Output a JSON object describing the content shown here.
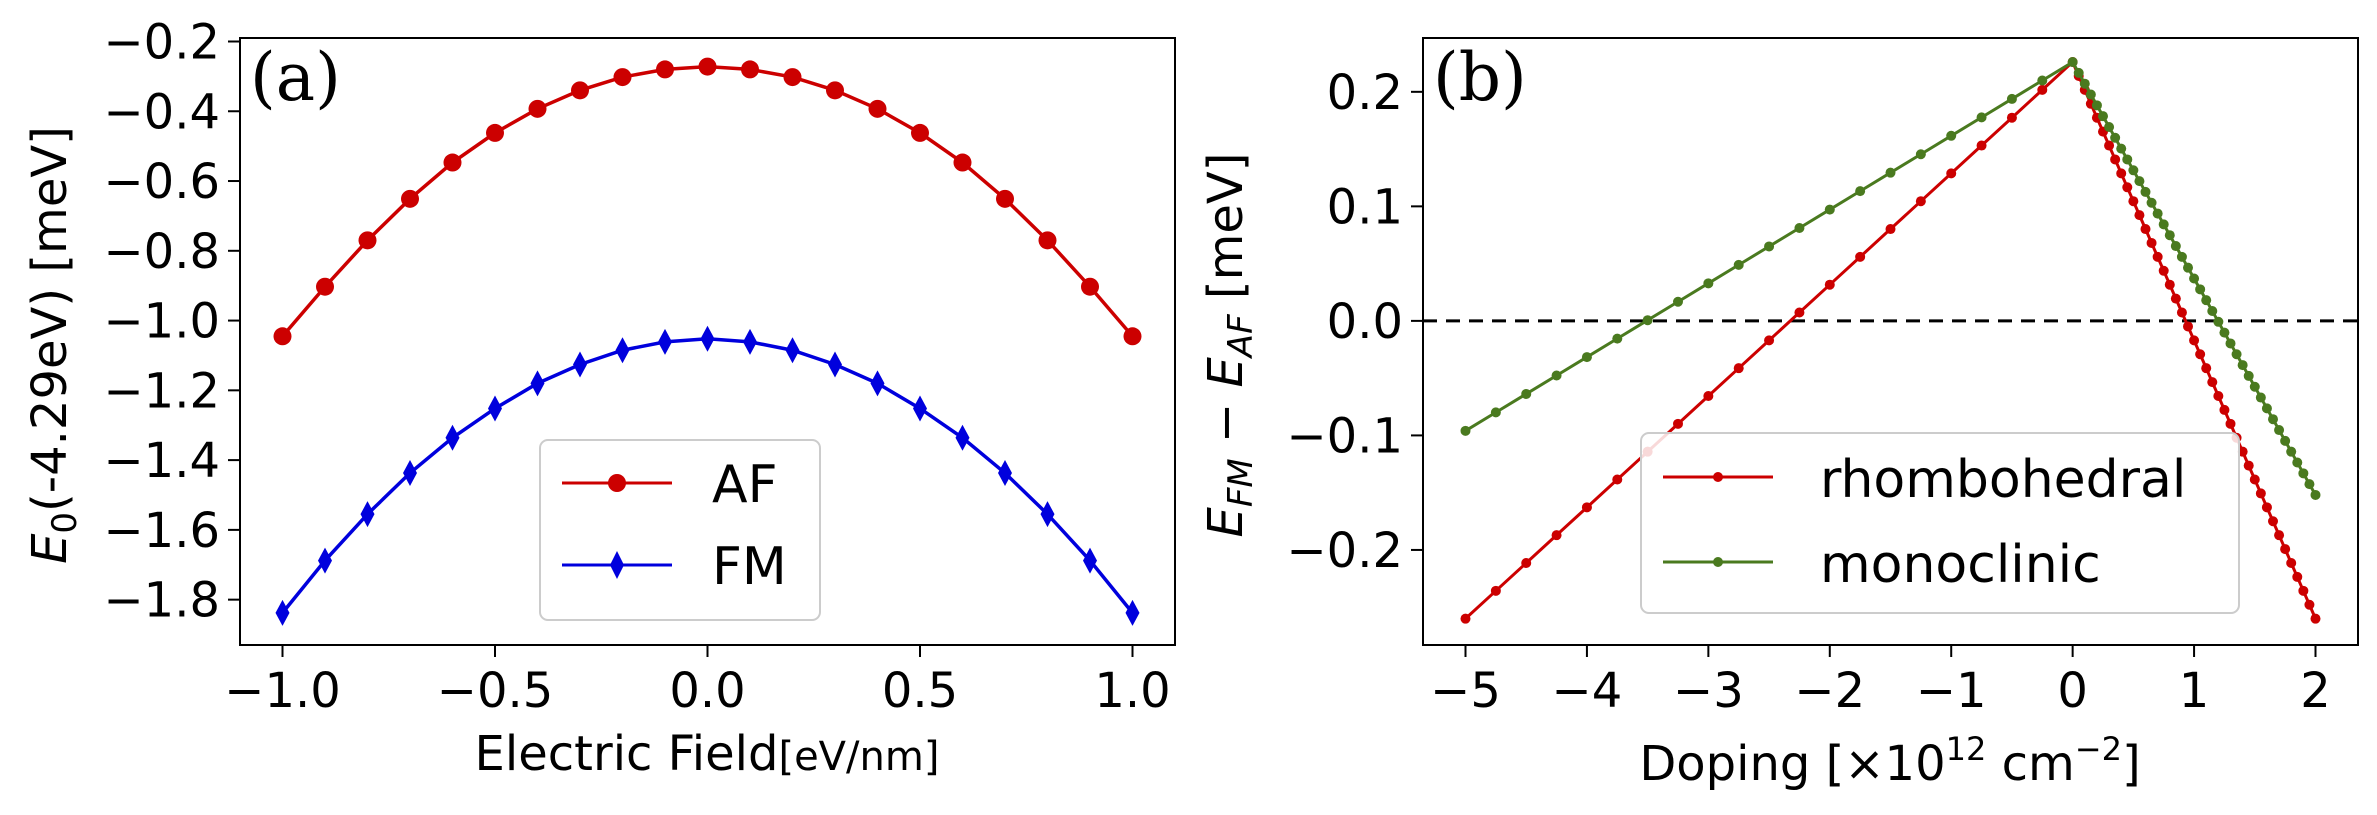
{
  "chart_data": [
    {
      "type": "line",
      "panel_label": "(a)",
      "xlabel_main": "Electric Field",
      "xlabel_unit": "[eV/nm]",
      "ylabel": {
        "base": "E",
        "sub": "0",
        "rest": "(-4.29eV) [meV]"
      },
      "xlim": [
        -1.1,
        1.1
      ],
      "ylim": [
        -1.93,
        -0.19
      ],
      "xticks": [
        -1.0,
        -0.5,
        0.0,
        0.5,
        1.0
      ],
      "xtick_labels": [
        "−1.0",
        "−0.5",
        "0.0",
        "0.5",
        "1.0"
      ],
      "yticks": [
        -0.2,
        -0.4,
        -0.6,
        -0.8,
        -1.0,
        -1.2,
        -1.4,
        -1.6,
        -1.8
      ],
      "ytick_labels": [
        "−0.2",
        "−0.4",
        "−0.6",
        "−0.8",
        "−1.0",
        "−1.2",
        "−1.4",
        "−1.6",
        "−1.8"
      ],
      "x": [
        -1.0,
        -0.9,
        -0.8,
        -0.7,
        -0.6,
        -0.5,
        -0.4,
        -0.3,
        -0.2,
        -0.1,
        0.0,
        0.1,
        0.2,
        0.3,
        0.4,
        0.5,
        0.6,
        0.7,
        0.8,
        0.9,
        1.0
      ],
      "series": [
        {
          "name": "AF",
          "color": "#cc0000",
          "marker": "circle",
          "values": [
            -1.045,
            -0.903,
            -0.77,
            -0.651,
            -0.547,
            -0.462,
            -0.393,
            -0.34,
            -0.302,
            -0.28,
            -0.272,
            -0.28,
            -0.302,
            -0.34,
            -0.393,
            -0.462,
            -0.547,
            -0.651,
            -0.77,
            -0.903,
            -1.045
          ]
        },
        {
          "name": "FM",
          "color": "#0000dd",
          "marker": "diamond",
          "values": [
            -1.838,
            -1.688,
            -1.555,
            -1.437,
            -1.336,
            -1.252,
            -1.18,
            -1.126,
            -1.085,
            -1.061,
            -1.052,
            -1.061,
            -1.085,
            -1.126,
            -1.18,
            -1.252,
            -1.336,
            -1.437,
            -1.555,
            -1.688,
            -1.838
          ]
        }
      ],
      "legend": {
        "placement": "lower-center",
        "entries": [
          "AF",
          "FM"
        ]
      }
    },
    {
      "type": "line",
      "panel_label": "(b)",
      "xlabel": {
        "text": "Doping [×10",
        "sup": "12",
        "text2": " cm",
        "sup2": "−2",
        "text3": "]"
      },
      "ylabel": {
        "e1": "E",
        "s1": "FM",
        "mid": " − ",
        "e2": "E",
        "s2": "AF",
        "rest": " [meV]"
      },
      "xlim": [
        -5.35,
        2.35
      ],
      "ylim": [
        -0.283,
        0.247
      ],
      "xticks": [
        -5,
        -4,
        -3,
        -2,
        -1,
        0,
        1,
        2
      ],
      "xtick_labels": [
        "−5",
        "−4",
        "−3",
        "−2",
        "−1",
        "0",
        "1",
        "2"
      ],
      "yticks": [
        0.2,
        0.1,
        0.0,
        -0.1,
        -0.2
      ],
      "ytick_labels": [
        "0.2",
        "0.1",
        "0.0",
        "−0.1",
        "−0.2"
      ],
      "reference_line": {
        "y": 0.0,
        "style": "dashed",
        "color": "#000000"
      },
      "series": [
        {
          "name": "rhombohedral",
          "color": "#cc0000",
          "marker": "dot",
          "segments": [
            {
              "x_start": -5.0,
              "x_end": 0.0,
              "step": 0.25,
              "y_start": -0.26,
              "y_end": 0.226
            },
            {
              "x_start": 0.0,
              "x_end": 2.0,
              "step": 0.05,
              "y_start": 0.226,
              "y_end": -0.26
            }
          ]
        },
        {
          "name": "monoclinic",
          "color": "#4a7a1f",
          "marker": "dot",
          "segments": [
            {
              "x_start": -5.0,
              "x_end": 0.0,
              "step": 0.25,
              "y_start": -0.096,
              "y_end": 0.226
            },
            {
              "x_start": 0.0,
              "x_end": 2.0,
              "step": 0.05,
              "y_start": 0.226,
              "y_end": -0.152
            }
          ]
        }
      ],
      "legend": {
        "placement": "lower-center",
        "entries": [
          "rhombohedral",
          "monoclinic"
        ]
      }
    }
  ]
}
